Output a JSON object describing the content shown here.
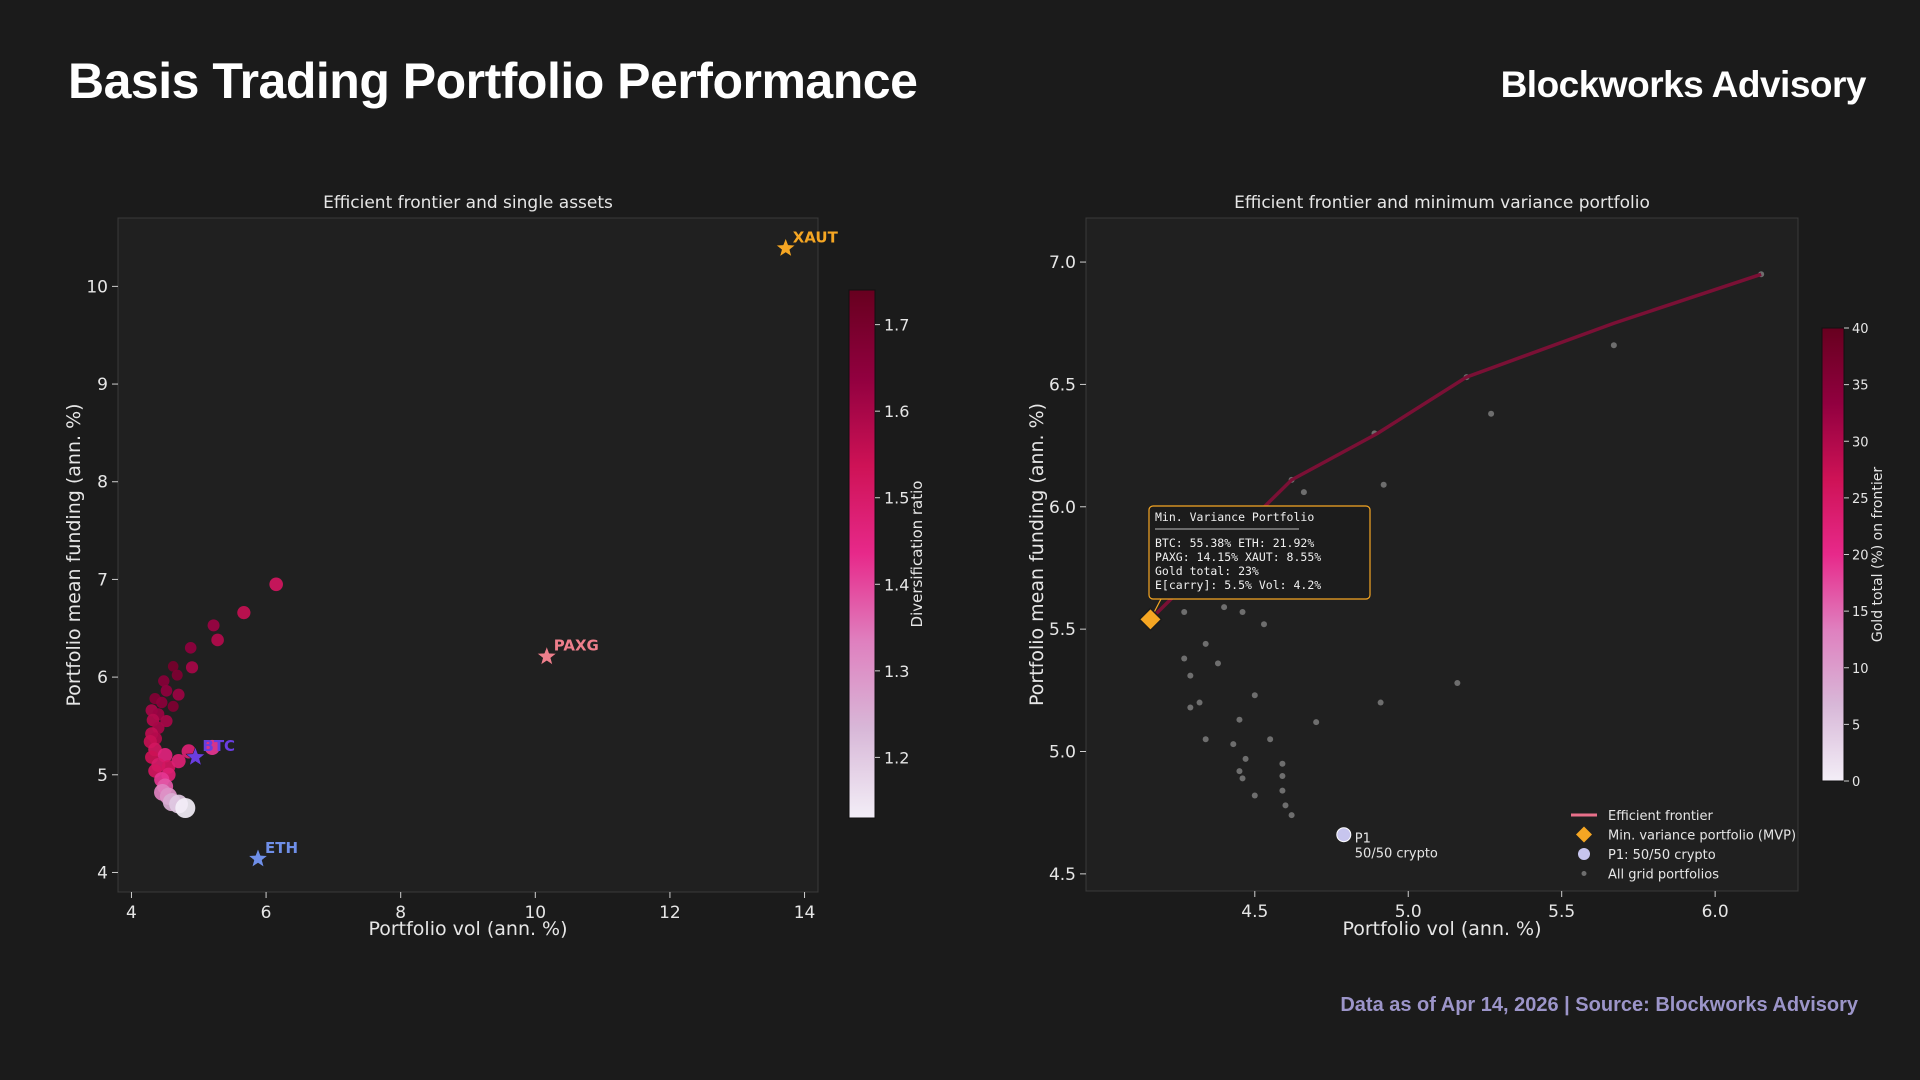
{
  "header": {
    "title": "Basis Trading Portfolio Performance",
    "brand": "Blockworks Advisory"
  },
  "footer": {
    "text": "Data as of Apr 14, 2026 | Source: Blockworks Advisory"
  },
  "colors": {
    "background": "#1b1b1b",
    "panel": "#202020",
    "xaut": "#f5a623",
    "paxg": "#ee7f8c",
    "btc": "#6a3ee0",
    "eth": "#6f8fe8",
    "frontier": "#7a1035",
    "frontier_legend": "#e8708a",
    "mvp": "#f5a623",
    "p1": "#c7c5ee",
    "grid_points": "#6e6e6e"
  },
  "chart_data": [
    {
      "type": "scatter",
      "title": "Efficient frontier and single assets",
      "xlabel": "Portfolio vol (ann. %)",
      "ylabel": "Portfolio mean funding (ann. %)",
      "xlim": [
        3.8,
        14.2
      ],
      "ylim": [
        3.8,
        10.7
      ],
      "xticks": [
        "4",
        "6",
        "8",
        "10",
        "12",
        "14"
      ],
      "yticks": [
        "4",
        "5",
        "6",
        "7",
        "8",
        "9",
        "10"
      ],
      "colorbar": {
        "label": "Diversification ratio",
        "min": 1.13,
        "max": 1.74,
        "ticks": [
          "1.2",
          "1.3",
          "1.4",
          "1.5",
          "1.6",
          "1.7"
        ],
        "tick_values": [
          1.2,
          1.3,
          1.4,
          1.5,
          1.6,
          1.7
        ]
      },
      "assets": [
        {
          "name": "XAUT",
          "x": 13.72,
          "y": 10.39,
          "color": "#f5a623"
        },
        {
          "name": "PAXG",
          "x": 10.17,
          "y": 6.21,
          "color": "#ee7f8c"
        },
        {
          "name": "BTC",
          "x": 4.95,
          "y": 5.18,
          "color": "#6a3ee0"
        },
        {
          "name": "ETH",
          "x": 5.88,
          "y": 4.14,
          "color": "#6f8fe8"
        }
      ],
      "portfolios": [
        {
          "x": 6.15,
          "y": 6.95,
          "d": 1.52
        },
        {
          "x": 5.67,
          "y": 6.66,
          "d": 1.55
        },
        {
          "x": 5.22,
          "y": 6.53,
          "d": 1.62
        },
        {
          "x": 5.28,
          "y": 6.38,
          "d": 1.58
        },
        {
          "x": 4.88,
          "y": 6.3,
          "d": 1.64
        },
        {
          "x": 4.9,
          "y": 6.1,
          "d": 1.6
        },
        {
          "x": 4.62,
          "y": 6.11,
          "d": 1.7
        },
        {
          "x": 4.68,
          "y": 6.02,
          "d": 1.68
        },
        {
          "x": 4.48,
          "y": 5.96,
          "d": 1.66
        },
        {
          "x": 4.52,
          "y": 5.86,
          "d": 1.64
        },
        {
          "x": 4.7,
          "y": 5.82,
          "d": 1.62
        },
        {
          "x": 4.35,
          "y": 5.78,
          "d": 1.67
        },
        {
          "x": 4.45,
          "y": 5.74,
          "d": 1.65
        },
        {
          "x": 4.62,
          "y": 5.7,
          "d": 1.68
        },
        {
          "x": 4.3,
          "y": 5.66,
          "d": 1.6
        },
        {
          "x": 4.4,
          "y": 5.62,
          "d": 1.62
        },
        {
          "x": 4.32,
          "y": 5.56,
          "d": 1.58
        },
        {
          "x": 4.52,
          "y": 5.55,
          "d": 1.6
        },
        {
          "x": 4.4,
          "y": 5.48,
          "d": 1.6
        },
        {
          "x": 4.3,
          "y": 5.42,
          "d": 1.56
        },
        {
          "x": 4.36,
          "y": 5.37,
          "d": 1.58
        },
        {
          "x": 4.28,
          "y": 5.34,
          "d": 1.55
        },
        {
          "x": 4.35,
          "y": 5.26,
          "d": 1.52
        },
        {
          "x": 4.3,
          "y": 5.18,
          "d": 1.54
        },
        {
          "x": 4.5,
          "y": 5.2,
          "d": 1.46
        },
        {
          "x": 4.85,
          "y": 5.24,
          "d": 1.48
        },
        {
          "x": 5.2,
          "y": 5.28,
          "d": 1.42
        },
        {
          "x": 4.4,
          "y": 5.1,
          "d": 1.5
        },
        {
          "x": 4.55,
          "y": 5.08,
          "d": 1.52
        },
        {
          "x": 4.7,
          "y": 5.14,
          "d": 1.48
        },
        {
          "x": 4.35,
          "y": 5.04,
          "d": 1.52
        },
        {
          "x": 4.55,
          "y": 5.0,
          "d": 1.48
        },
        {
          "x": 4.45,
          "y": 4.95,
          "d": 1.42
        },
        {
          "x": 4.5,
          "y": 4.88,
          "d": 1.38
        },
        {
          "x": 4.46,
          "y": 4.82,
          "d": 1.33
        },
        {
          "x": 4.55,
          "y": 4.78,
          "d": 1.3
        },
        {
          "x": 4.6,
          "y": 4.72,
          "d": 1.25
        },
        {
          "x": 4.7,
          "y": 4.7,
          "d": 1.2
        },
        {
          "x": 4.8,
          "y": 4.66,
          "d": 1.13
        }
      ]
    },
    {
      "type": "scatter",
      "title": "Efficient frontier and minimum variance portfolio",
      "xlabel": "Portfolio vol (ann. %)",
      "ylabel": "Portfolio mean funding (ann. %)",
      "xlim": [
        3.95,
        6.27
      ],
      "ylim": [
        4.43,
        7.18
      ],
      "xticks": [
        "4.5",
        "5.0",
        "5.5",
        "6.0"
      ],
      "yticks": [
        "4.5",
        "5.0",
        "5.5",
        "6.0",
        "6.5",
        "7.0"
      ],
      "colorbar": {
        "label": "Gold total (%) on frontier",
        "min": 0,
        "max": 40,
        "ticks": [
          "0",
          "5",
          "10",
          "15",
          "20",
          "25",
          "30",
          "35",
          "40"
        ],
        "tick_values": [
          0,
          5,
          10,
          15,
          20,
          25,
          30,
          35,
          40
        ]
      },
      "frontier": [
        {
          "x": 4.16,
          "y": 5.54
        },
        {
          "x": 4.62,
          "y": 6.11
        },
        {
          "x": 4.9,
          "y": 6.3
        },
        {
          "x": 5.19,
          "y": 6.53
        },
        {
          "x": 5.67,
          "y": 6.75
        },
        {
          "x": 6.15,
          "y": 6.95
        }
      ],
      "mvp": {
        "x": 4.16,
        "y": 5.54
      },
      "p1": {
        "x": 4.79,
        "y": 4.66,
        "label": "P1",
        "sublabel": "50/50 crypto"
      },
      "grid_portfolios": [
        {
          "x": 6.15,
          "y": 6.95
        },
        {
          "x": 5.67,
          "y": 6.66
        },
        {
          "x": 5.19,
          "y": 6.53
        },
        {
          "x": 5.27,
          "y": 6.38
        },
        {
          "x": 4.89,
          "y": 6.3
        },
        {
          "x": 4.92,
          "y": 6.09
        },
        {
          "x": 4.62,
          "y": 6.11
        },
        {
          "x": 4.66,
          "y": 6.06
        },
        {
          "x": 4.27,
          "y": 5.57
        },
        {
          "x": 4.4,
          "y": 5.59
        },
        {
          "x": 4.46,
          "y": 5.57
        },
        {
          "x": 4.53,
          "y": 5.52
        },
        {
          "x": 4.34,
          "y": 5.44
        },
        {
          "x": 4.27,
          "y": 5.38
        },
        {
          "x": 4.38,
          "y": 5.36
        },
        {
          "x": 4.29,
          "y": 5.31
        },
        {
          "x": 4.5,
          "y": 5.23
        },
        {
          "x": 4.32,
          "y": 5.2
        },
        {
          "x": 4.29,
          "y": 5.18
        },
        {
          "x": 4.91,
          "y": 5.2
        },
        {
          "x": 5.16,
          "y": 5.28
        },
        {
          "x": 4.45,
          "y": 5.13
        },
        {
          "x": 4.7,
          "y": 5.12
        },
        {
          "x": 4.34,
          "y": 5.05
        },
        {
          "x": 4.43,
          "y": 5.03
        },
        {
          "x": 4.55,
          "y": 5.05
        },
        {
          "x": 4.47,
          "y": 4.97
        },
        {
          "x": 4.59,
          "y": 4.95
        },
        {
          "x": 4.45,
          "y": 4.92
        },
        {
          "x": 4.46,
          "y": 4.89
        },
        {
          "x": 4.59,
          "y": 4.9
        },
        {
          "x": 4.59,
          "y": 4.84
        },
        {
          "x": 4.5,
          "y": 4.82
        },
        {
          "x": 4.6,
          "y": 4.78
        },
        {
          "x": 4.62,
          "y": 4.74
        }
      ],
      "annotation": {
        "title": "Min. Variance Portfolio",
        "lines": [
          "BTC:   55.38%   ETH:   21.92%",
          "PAXG: 14.15%   XAUT:  8.55%",
          "Gold total: 23%",
          "E[carry]: 5.5%  Vol: 4.2%"
        ]
      },
      "legend": {
        "position": "lower right",
        "items": [
          {
            "label": "Efficient frontier",
            "marker": "line"
          },
          {
            "label": "Min. variance portfolio (MVP)",
            "marker": "diamond"
          },
          {
            "label": "P1: 50/50 crypto",
            "marker": "circle"
          },
          {
            "label": "All grid portfolios",
            "marker": "dot"
          }
        ]
      }
    }
  ]
}
